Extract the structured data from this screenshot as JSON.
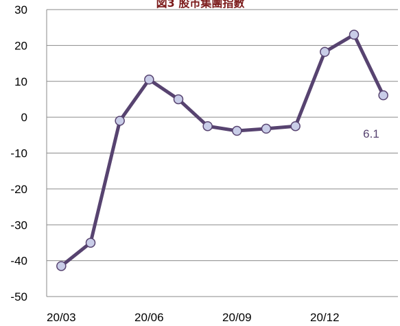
{
  "chart_data": {
    "type": "line",
    "title": "図3 股市集團指數",
    "x": [
      "20/03",
      "20/04",
      "20/05",
      "20/06",
      "20/07",
      "20/08",
      "20/09",
      "20/10",
      "20/11",
      "20/12",
      "21/01",
      "21/02"
    ],
    "xticks": [
      "20/03",
      "20/06",
      "20/09",
      "20/12"
    ],
    "series": [
      {
        "values": [
          -41.5,
          -35.0,
          -1.0,
          10.5,
          5.0,
          -2.5,
          -3.8,
          -3.2,
          -2.5,
          18.2,
          23.0,
          6.1
        ]
      }
    ],
    "ylim": [
      -50,
      30
    ],
    "yticks": [
      30,
      20,
      10,
      0,
      -10,
      -20,
      -30,
      -40,
      -50
    ],
    "grid": true,
    "annotations": [
      {
        "text": "6.1"
      }
    ],
    "colors": {
      "line": "#574370",
      "marker_fill": "#c9cde8",
      "marker_stroke": "#574370",
      "grid": "#8a8a8a"
    }
  }
}
